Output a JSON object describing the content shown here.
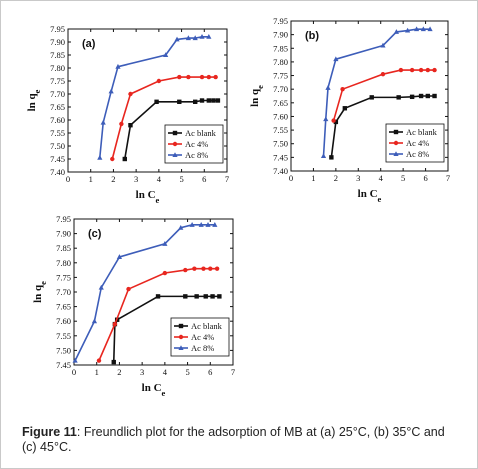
{
  "caption": {
    "label": "Figure 11",
    "text": ": Freundlich plot for the adsorption of MB at (a) 25°C, (b) 35°C and (c) 45°C."
  },
  "colors": {
    "blank": "#111111",
    "ac4": "#e8261f",
    "ac8": "#3d5db9"
  },
  "chart_data": [
    {
      "type": "line",
      "panel_label": "(a)",
      "xlabel": "ln Ce",
      "ylabel": "ln qe",
      "xlim": [
        0,
        7
      ],
      "ylim": [
        7.4,
        7.95
      ],
      "x_ticks": [
        "0",
        "1",
        "2",
        "3",
        "4",
        "5",
        "6",
        "7"
      ],
      "y_ticks": [
        "7.40",
        "7.45",
        "7.50",
        "7.55",
        "7.60",
        "7.65",
        "7.70",
        "7.75",
        "7.80",
        "7.85",
        "7.90",
        "7.95"
      ],
      "legend_position": "bottom-right",
      "series": [
        {
          "name": "Ac blank",
          "key": "blank",
          "marker": "square",
          "x": [
            2.5,
            2.75,
            3.9,
            4.9,
            5.6,
            5.9,
            6.2,
            6.4,
            6.6
          ],
          "y": [
            7.45,
            7.58,
            7.67,
            7.67,
            7.67,
            7.675,
            7.675,
            7.675,
            7.675
          ]
        },
        {
          "name": "Ac 4%",
          "key": "ac4",
          "marker": "circle",
          "x": [
            1.95,
            2.35,
            2.75,
            4.0,
            4.9,
            5.3,
            5.9,
            6.2,
            6.5
          ],
          "y": [
            7.45,
            7.585,
            7.7,
            7.75,
            7.765,
            7.765,
            7.765,
            7.765,
            7.765
          ]
        },
        {
          "name": "Ac 8%",
          "key": "ac8",
          "marker": "triangle",
          "x": [
            1.4,
            1.55,
            1.9,
            2.2,
            4.3,
            4.8,
            5.3,
            5.6,
            5.9,
            6.2
          ],
          "y": [
            7.455,
            7.59,
            7.71,
            7.805,
            7.85,
            7.91,
            7.915,
            7.915,
            7.92,
            7.92
          ]
        }
      ]
    },
    {
      "type": "line",
      "panel_label": "(b)",
      "xlabel": "ln Ce",
      "ylabel": "ln qe",
      "xlim": [
        0,
        7
      ],
      "ylim": [
        7.4,
        7.95
      ],
      "x_ticks": [
        "0",
        "1",
        "2",
        "3",
        "4",
        "5",
        "6",
        "7"
      ],
      "y_ticks": [
        "7.40",
        "7.45",
        "7.50",
        "7.55",
        "7.60",
        "7.65",
        "7.70",
        "7.75",
        "7.80",
        "7.85",
        "7.90",
        "7.95"
      ],
      "legend_position": "bottom-right",
      "series": [
        {
          "name": "Ac blank",
          "key": "blank",
          "marker": "square",
          "x": [
            1.8,
            2.0,
            2.4,
            3.6,
            4.8,
            5.4,
            5.8,
            6.1,
            6.4
          ],
          "y": [
            7.45,
            7.58,
            7.63,
            7.67,
            7.67,
            7.672,
            7.675,
            7.675,
            7.675
          ]
        },
        {
          "name": "Ac 4%",
          "key": "ac4",
          "marker": "circle",
          "x": [
            1.9,
            2.3,
            4.1,
            4.9,
            5.4,
            5.8,
            6.1,
            6.4
          ],
          "y": [
            7.585,
            7.7,
            7.755,
            7.77,
            7.77,
            7.77,
            7.77,
            7.77
          ]
        },
        {
          "name": "Ac 8%",
          "key": "ac8",
          "marker": "triangle",
          "x": [
            1.45,
            1.55,
            1.65,
            2.0,
            4.1,
            4.7,
            5.2,
            5.6,
            5.9,
            6.2
          ],
          "y": [
            7.455,
            7.59,
            7.705,
            7.81,
            7.86,
            7.91,
            7.915,
            7.92,
            7.92,
            7.92
          ]
        }
      ]
    },
    {
      "type": "line",
      "panel_label": "(c)",
      "xlabel": "ln Ce",
      "ylabel": "ln qe",
      "xlim": [
        0,
        7
      ],
      "ylim": [
        7.45,
        7.95
      ],
      "x_ticks": [
        "0",
        "1",
        "2",
        "3",
        "4",
        "5",
        "6",
        "7"
      ],
      "y_ticks": [
        "7.45",
        "7.50",
        "7.55",
        "7.60",
        "7.65",
        "7.70",
        "7.75",
        "7.80",
        "7.85",
        "7.90",
        "7.95"
      ],
      "legend_position": "bottom-right",
      "series": [
        {
          "name": "Ac blank",
          "key": "blank",
          "marker": "square",
          "x": [
            1.75,
            1.8,
            1.9,
            3.7,
            4.9,
            5.4,
            5.8,
            6.1,
            6.4
          ],
          "y": [
            7.46,
            7.59,
            7.605,
            7.685,
            7.685,
            7.685,
            7.685,
            7.685,
            7.685
          ]
        },
        {
          "name": "Ac 4%",
          "key": "ac4",
          "marker": "circle",
          "x": [
            1.1,
            1.8,
            2.4,
            4.0,
            4.9,
            5.3,
            5.7,
            6.0,
            6.3
          ],
          "y": [
            7.465,
            7.59,
            7.71,
            7.765,
            7.775,
            7.78,
            7.78,
            7.78,
            7.78
          ]
        },
        {
          "name": "Ac 8%",
          "key": "ac8",
          "marker": "triangle",
          "x": [
            0.05,
            0.9,
            1.2,
            2.0,
            4.0,
            4.7,
            5.2,
            5.6,
            5.9,
            6.2
          ],
          "y": [
            7.465,
            7.6,
            7.715,
            7.82,
            7.865,
            7.92,
            7.93,
            7.93,
            7.93,
            7.93
          ]
        }
      ]
    }
  ]
}
